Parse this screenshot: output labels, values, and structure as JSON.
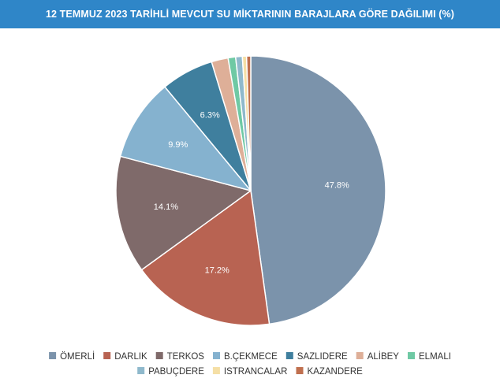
{
  "header": {
    "title": "12 TEMMUZ 2023 TARİHLİ MEVCUT SU MİKTARININ BARAJLARA GÖRE DAĞILIMI (%)"
  },
  "chart_data": {
    "type": "pie",
    "title": "12 TEMMUZ 2023 TARİHLİ MEVCUT SU MİKTARININ BARAJLARA GÖRE DAĞILIMI (%)",
    "start_angle_deg": 0,
    "direction": "clockwise",
    "legend_position": "bottom",
    "slices": [
      {
        "name": "ÖMERLİ",
        "value": 47.8,
        "label": "47.8%",
        "color": "#7b93ab"
      },
      {
        "name": "DARLIK",
        "value": 17.2,
        "label": "17.2%",
        "color": "#b86352"
      },
      {
        "name": "TERKOS",
        "value": 14.1,
        "label": "14.1%",
        "color": "#7f6a6a"
      },
      {
        "name": "B.ÇEKMECE",
        "value": 9.9,
        "label": "9.9%",
        "color": "#85b2cf"
      },
      {
        "name": "SAZLIDERE",
        "value": 6.3,
        "label": "6.3%",
        "color": "#3f7f9e"
      },
      {
        "name": "ALİBEY",
        "value": 2.0,
        "label": "",
        "color": "#deaf98"
      },
      {
        "name": "ELMALI",
        "value": 0.9,
        "label": "",
        "color": "#6fc9a4"
      },
      {
        "name": "PABUÇDERE",
        "value": 0.8,
        "label": "",
        "color": "#8fb9cc"
      },
      {
        "name": "ISTRANCALAR",
        "value": 0.5,
        "label": "",
        "color": "#f5dfa6"
      },
      {
        "name": "KAZANDERE",
        "value": 0.5,
        "label": "",
        "color": "#c0704f"
      }
    ]
  }
}
